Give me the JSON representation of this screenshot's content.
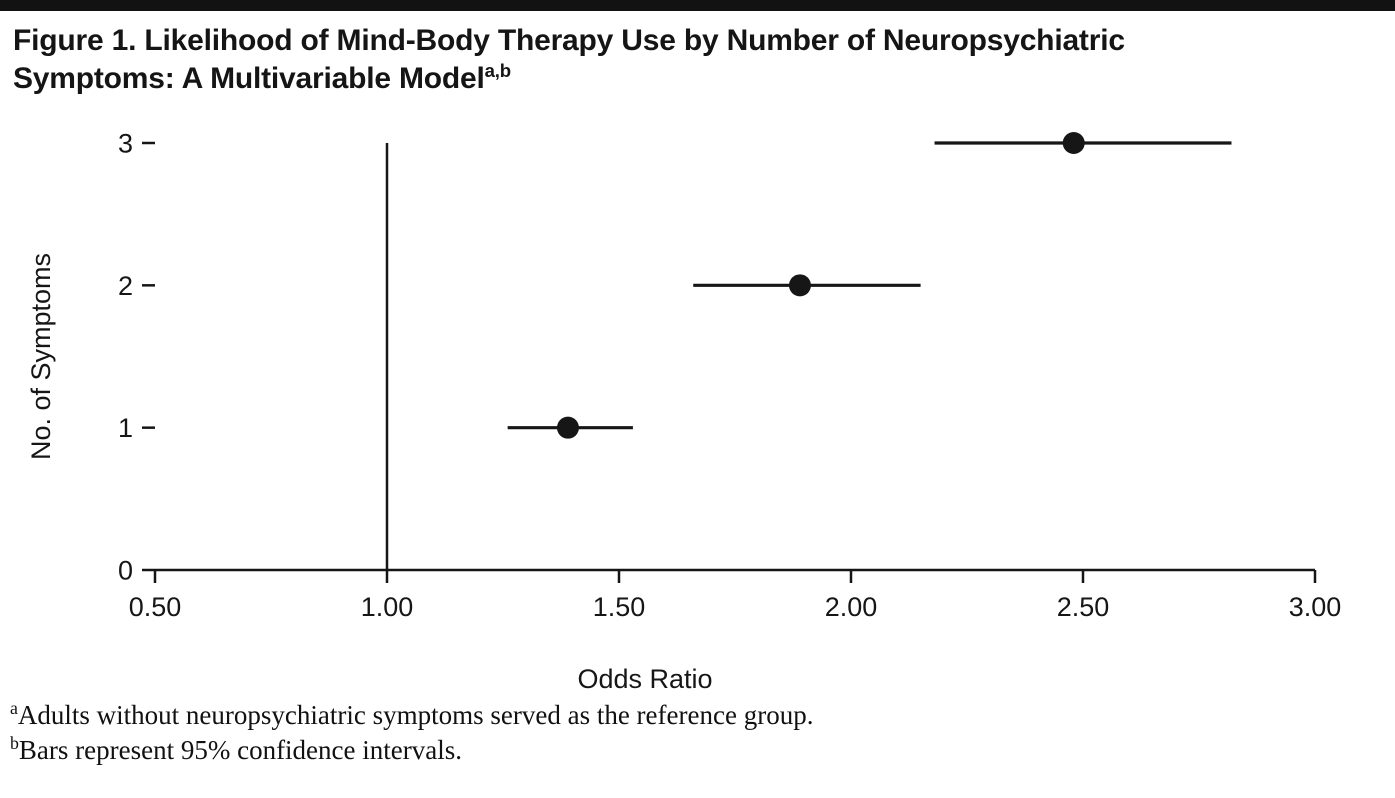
{
  "figure": {
    "title_line1": "Figure 1. Likelihood of Mind-Body Therapy Use by Number of Neuropsychiatric",
    "title_line2": "Symptoms: A Multivariable Model",
    "title_superscript": "a,b"
  },
  "chart_data": {
    "type": "scatter",
    "subtype": "forest_plot_dot_with_ci",
    "title": "Figure 1. Likelihood of Mind-Body Therapy Use by Number of Neuropsychiatric Symptoms: A Multivariable Model",
    "xlabel": "Odds Ratio",
    "ylabel": "No. of Symptoms",
    "xlim": [
      0.5,
      3.0
    ],
    "ylim": [
      0,
      3
    ],
    "grid": false,
    "legend": false,
    "marker_color": "#161616",
    "reference_line_x": 1.0,
    "xticks": [
      {
        "value": 0.5,
        "label": "0.50"
      },
      {
        "value": 1.0,
        "label": "1.00"
      },
      {
        "value": 1.5,
        "label": "1.50"
      },
      {
        "value": 2.0,
        "label": "2.00"
      },
      {
        "value": 2.5,
        "label": "2.50"
      },
      {
        "value": 3.0,
        "label": "3.00"
      }
    ],
    "yticks": [
      {
        "value": 0,
        "label": "0"
      },
      {
        "value": 1,
        "label": "1"
      },
      {
        "value": 2,
        "label": "2"
      },
      {
        "value": 3,
        "label": "3"
      }
    ],
    "series": [
      {
        "name": "Odds ratio with 95% confidence interval",
        "points": [
          {
            "no_of_symptoms": 1,
            "odds_ratio": 1.39,
            "ci_low": 1.26,
            "ci_high": 1.53
          },
          {
            "no_of_symptoms": 2,
            "odds_ratio": 1.89,
            "ci_low": 1.66,
            "ci_high": 2.15
          },
          {
            "no_of_symptoms": 3,
            "odds_ratio": 2.48,
            "ci_low": 2.18,
            "ci_high": 2.82
          }
        ]
      }
    ]
  },
  "footnotes": [
    {
      "marker": "a",
      "text": "Adults without neuropsychiatric symptoms served as the reference group."
    },
    {
      "marker": "b",
      "text": "Bars represent 95% confidence intervals."
    }
  ]
}
